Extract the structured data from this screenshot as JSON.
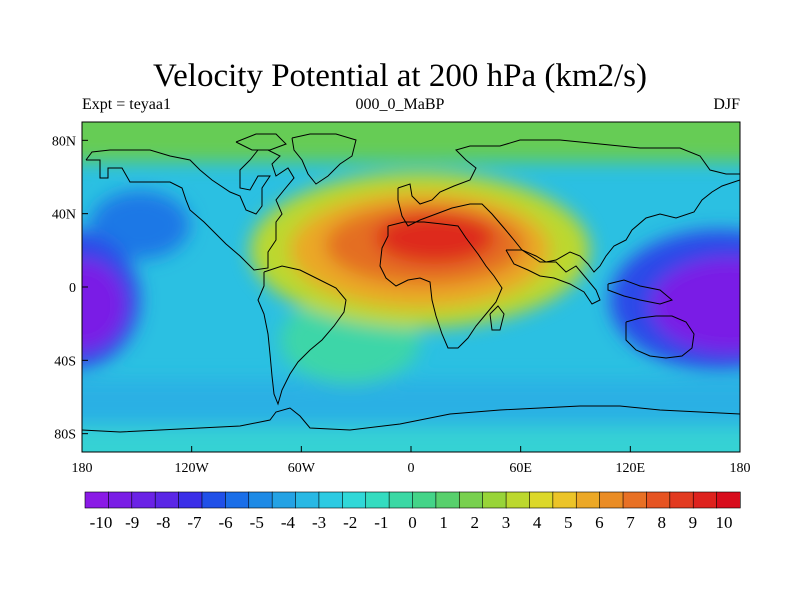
{
  "header": {
    "title": "Velocity Potential at 200 hPa (km2/s)",
    "left_label": "Expt = teyaa1",
    "center_label": "000_0_MaBP",
    "right_label": "DJF"
  },
  "axes": {
    "x_ticks": [
      "180",
      "120W",
      "60W",
      "0",
      "60E",
      "120E",
      "180"
    ],
    "y_ticks": [
      "80N",
      "40N",
      "0",
      "40S",
      "80S"
    ]
  },
  "colorbar": {
    "labels": [
      "-10",
      "-9",
      "-8",
      "-7",
      "-6",
      "-5",
      "-4",
      "-3",
      "-2",
      "-1",
      "0",
      "1",
      "2",
      "3",
      "4",
      "5",
      "6",
      "7",
      "8",
      "9",
      "10"
    ],
    "colors": [
      "#8a1ae6",
      "#7a1ee6",
      "#6a22e6",
      "#5a26e6",
      "#3a2ee8",
      "#2050e8",
      "#1a6ee8",
      "#1e8ae6",
      "#24a2e4",
      "#28b8e4",
      "#2ccae2",
      "#30d8d8",
      "#34dcc0",
      "#3ad8a4",
      "#44d488",
      "#58d06c",
      "#78d04e",
      "#98d438",
      "#bcd82e",
      "#dcd82a",
      "#ecc428",
      "#eca826",
      "#ea8c24",
      "#e87024",
      "#e65422",
      "#e23a20",
      "#de221e",
      "#d80c1c"
    ]
  },
  "map": {
    "background_color": "#2bc0e2",
    "features": [
      {
        "name": "arctic-band",
        "color": "#66cc55"
      },
      {
        "name": "antarctic-band",
        "color": "#36d2d4"
      },
      {
        "name": "southern-ocean-band",
        "color": "#2ab0e4"
      },
      {
        "name": "north-pacific-low",
        "color": "#1d78e6"
      },
      {
        "name": "south-atlantic-high",
        "color": "#3ed6a8"
      },
      {
        "name": "africa-eurasia-high-outer",
        "color": "#bcd82e"
      },
      {
        "name": "africa-eurasia-high-mid",
        "color": "#eaa826"
      },
      {
        "name": "africa-eurasia-high-inner",
        "color": "#e46e24"
      },
      {
        "name": "africa-eurasia-high-core",
        "color": "#de2a1e"
      },
      {
        "name": "west-pacific-minimum-outer",
        "color": "#2a4ae8"
      },
      {
        "name": "west-pacific-minimum-core",
        "color": "#7a1ee6"
      },
      {
        "name": "east-pacific-minimum-outer",
        "color": "#2a4ae8"
      },
      {
        "name": "east-pacific-minimum-core",
        "color": "#7a1ee6"
      }
    ]
  }
}
